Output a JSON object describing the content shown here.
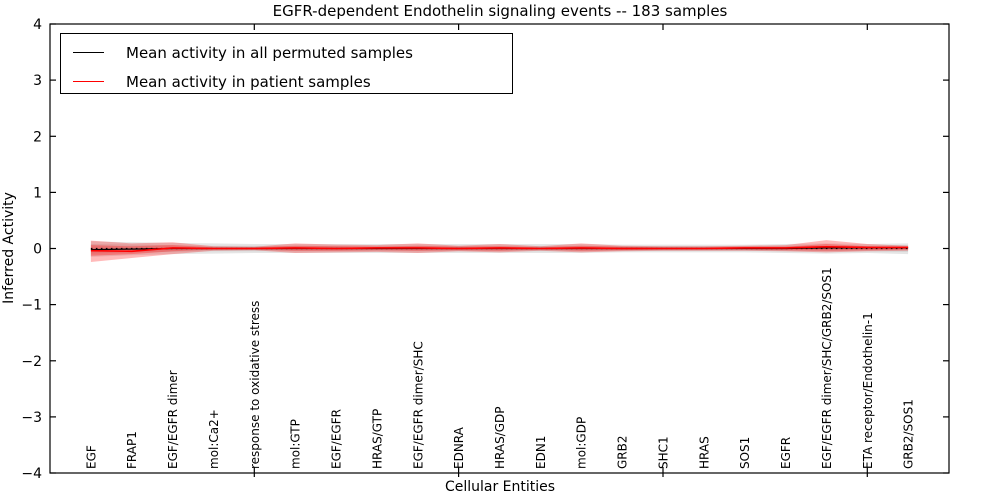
{
  "figure": {
    "title": "EGFR-dependent Endothelin signaling events -- 183 samples",
    "xlabel": "Cellular Entities",
    "ylabel": "Inferred Activity"
  },
  "legend": {
    "entries": [
      {
        "label": "Mean activity in all permuted samples",
        "color": "#000000"
      },
      {
        "label": "Mean activity in patient samples",
        "color": "#ff0000"
      }
    ]
  },
  "chart_data": {
    "type": "line",
    "title": "EGFR-dependent Endothelin signaling events -- 183 samples",
    "xlabel": "Cellular Entities",
    "ylabel": "Inferred Activity",
    "ylim": [
      -4,
      4
    ],
    "yticks": [
      -4,
      -3,
      -2,
      -1,
      0,
      1,
      2,
      3,
      4
    ],
    "xtick_major_indices": [
      4,
      9,
      14,
      19
    ],
    "grid": false,
    "legend_position": "upper-left",
    "categories": [
      "EGF",
      "FRAP1",
      "EGF/EGFR dimer",
      "mol:Ca2+",
      "response to oxidative stress",
      "mol:GTP",
      "EGF/EGFR",
      "HRAS/GTP",
      "EGF/EGFR dimer/SHC",
      "EDNRA",
      "HRAS/GDP",
      "EDN1",
      "mol:GDP",
      "GRB2",
      "SHC1",
      "HRAS",
      "SOS1",
      "EGFR",
      "EGF/EGFR dimer/SHC/GRB2/SOS1",
      "ETA receptor/Endothelin-1",
      "GRB2/SOS1"
    ],
    "series": [
      {
        "name": "Mean activity in all permuted samples",
        "color": "#000000",
        "width": 1.2,
        "values": [
          -0.02,
          -0.01,
          0.0,
          0.0,
          0.0,
          0.0,
          0.0,
          0.0,
          0.0,
          0.0,
          0.0,
          0.0,
          0.0,
          0.0,
          0.0,
          0.0,
          0.0,
          0.0,
          0.01,
          0.01,
          0.01
        ]
      },
      {
        "name": "Mean activity in patient samples",
        "color": "#ff0000",
        "width": 1.6,
        "values": [
          -0.04,
          -0.05,
          0.01,
          0.0,
          0.0,
          0.01,
          0.0,
          0.01,
          0.01,
          0.0,
          0.01,
          0.0,
          0.01,
          0.0,
          0.0,
          0.0,
          0.01,
          0.01,
          0.03,
          0.02,
          0.02
        ]
      }
    ],
    "bands": [
      {
        "name": "permuted-spread-outer",
        "color": "#000000",
        "opacity": 0.1,
        "upper": [
          0.13,
          0.11,
          0.1,
          0.09,
          0.08,
          0.08,
          0.08,
          0.08,
          0.08,
          0.08,
          0.08,
          0.08,
          0.08,
          0.07,
          0.07,
          0.07,
          0.07,
          0.08,
          0.09,
          0.08,
          0.09
        ],
        "lower": [
          -0.15,
          -0.12,
          -0.1,
          -0.09,
          -0.08,
          -0.08,
          -0.08,
          -0.08,
          -0.08,
          -0.08,
          -0.08,
          -0.08,
          -0.08,
          -0.07,
          -0.07,
          -0.07,
          -0.07,
          -0.08,
          -0.09,
          -0.08,
          -0.1
        ]
      },
      {
        "name": "permuted-spread-inner",
        "color": "#000000",
        "opacity": 0.08,
        "upper": [
          0.08,
          0.07,
          0.06,
          0.05,
          0.05,
          0.05,
          0.05,
          0.05,
          0.05,
          0.05,
          0.05,
          0.05,
          0.05,
          0.04,
          0.04,
          0.04,
          0.04,
          0.05,
          0.05,
          0.05,
          0.06
        ],
        "lower": [
          -0.09,
          -0.07,
          -0.06,
          -0.05,
          -0.05,
          -0.05,
          -0.05,
          -0.05,
          -0.05,
          -0.05,
          -0.05,
          -0.05,
          -0.05,
          -0.04,
          -0.04,
          -0.04,
          -0.04,
          -0.05,
          -0.05,
          -0.05,
          -0.06
        ]
      },
      {
        "name": "patient-spread-outer",
        "color": "#ff0000",
        "opacity": 0.27,
        "upper": [
          0.14,
          0.09,
          0.11,
          0.04,
          0.03,
          0.09,
          0.07,
          0.06,
          0.09,
          0.05,
          0.08,
          0.04,
          0.09,
          0.05,
          0.04,
          0.04,
          0.05,
          0.06,
          0.15,
          0.08,
          0.05
        ],
        "lower": [
          -0.24,
          -0.17,
          -0.1,
          -0.04,
          -0.03,
          -0.08,
          -0.07,
          -0.06,
          -0.08,
          -0.05,
          -0.07,
          -0.04,
          -0.07,
          -0.05,
          -0.04,
          -0.04,
          -0.04,
          -0.05,
          -0.07,
          -0.05,
          -0.04
        ]
      },
      {
        "name": "patient-spread-inner",
        "color": "#ff0000",
        "opacity": 0.28,
        "upper": [
          0.06,
          0.04,
          0.06,
          0.02,
          0.02,
          0.05,
          0.04,
          0.03,
          0.05,
          0.03,
          0.04,
          0.02,
          0.05,
          0.03,
          0.02,
          0.02,
          0.03,
          0.03,
          0.08,
          0.04,
          0.03
        ],
        "lower": [
          -0.13,
          -0.1,
          -0.05,
          -0.02,
          -0.02,
          -0.04,
          -0.04,
          -0.03,
          -0.04,
          -0.03,
          -0.04,
          -0.02,
          -0.04,
          -0.03,
          -0.02,
          -0.02,
          -0.02,
          -0.03,
          -0.04,
          -0.03,
          -0.02
        ]
      }
    ],
    "zero_line": {
      "style": "dotted",
      "color": "#000000",
      "y": 0
    }
  }
}
